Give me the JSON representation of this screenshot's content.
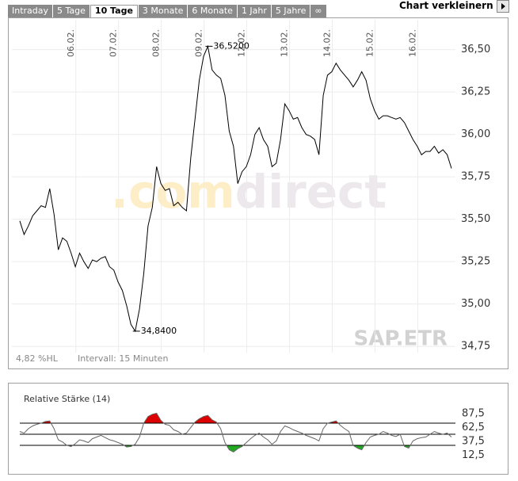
{
  "tabs": [
    {
      "label": "Intraday",
      "active": false
    },
    {
      "label": "5 Tage",
      "active": false
    },
    {
      "label": "10 Tage",
      "active": true
    },
    {
      "label": "3 Monate",
      "active": false
    },
    {
      "label": "6 Monate",
      "active": false
    },
    {
      "label": "1 Jahr",
      "active": false
    },
    {
      "label": "5 Jahre",
      "active": false
    },
    {
      "label": "∞",
      "active": false
    }
  ],
  "header_action": "Chart verkleinern",
  "chart_data": [
    {
      "type": "line",
      "categories": [
        null,
        null,
        null,
        null,
        null,
        null,
        null,
        null,
        null,
        null,
        null,
        null,
        "06.02.",
        null,
        null,
        null,
        null,
        null,
        null,
        null,
        null,
        null,
        "07.02.",
        null,
        null,
        null,
        null,
        null,
        null,
        null,
        null,
        null,
        "08.02.",
        null,
        null,
        null,
        null,
        null,
        null,
        null,
        null,
        null,
        "09.02.",
        null,
        null,
        null,
        null,
        null,
        null,
        null,
        null,
        null,
        "12.02.",
        null,
        null,
        null,
        null,
        null,
        null,
        null,
        null,
        null,
        "13.02.",
        null,
        null,
        null,
        null,
        null,
        null,
        null,
        null,
        null,
        "14.02.",
        null,
        null,
        null,
        null,
        null,
        null,
        null,
        null,
        null,
        "15.02.",
        null,
        null,
        null,
        null,
        null,
        null,
        null,
        null,
        null,
        "16.02.",
        null,
        null,
        null,
        null,
        null,
        null,
        null,
        null,
        null
      ],
      "values": [
        35.49,
        35.41,
        35.46,
        35.52,
        35.55,
        35.58,
        35.57,
        35.68,
        35.53,
        35.32,
        35.39,
        35.37,
        35.3,
        35.22,
        35.3,
        35.25,
        35.21,
        35.26,
        35.25,
        35.27,
        35.28,
        35.22,
        35.2,
        35.13,
        35.08,
        34.99,
        34.88,
        34.84,
        34.97,
        35.18,
        35.46,
        35.57,
        35.81,
        35.71,
        35.67,
        35.68,
        35.58,
        35.6,
        35.57,
        35.55,
        35.86,
        36.09,
        36.32,
        36.46,
        36.52,
        36.38,
        36.35,
        36.33,
        36.23,
        36.02,
        35.93,
        35.71,
        35.78,
        35.81,
        35.88,
        36.0,
        36.04,
        35.97,
        35.93,
        35.81,
        35.83,
        35.97,
        36.18,
        36.14,
        36.09,
        36.1,
        36.04,
        36.0,
        35.99,
        35.97,
        35.88,
        36.23,
        36.35,
        36.37,
        36.42,
        36.38,
        36.35,
        36.32,
        36.28,
        36.32,
        36.37,
        36.32,
        36.21,
        36.14,
        36.09,
        36.11,
        36.11,
        36.1,
        36.09,
        36.1,
        36.07,
        36.02,
        35.97,
        35.93,
        35.88,
        35.9,
        35.9,
        35.93,
        35.89,
        35.91,
        35.88,
        35.8
      ],
      "color": "#000000",
      "ylim": [
        34.62,
        36.69
      ],
      "yticks": [
        {
          "value": 34.75,
          "label": "34,75"
        },
        {
          "value": 35.0,
          "label": "35,00"
        },
        {
          "value": 35.25,
          "label": "35,25"
        },
        {
          "value": 35.5,
          "label": "35,50"
        },
        {
          "value": 35.75,
          "label": "35,75"
        },
        {
          "value": 36.0,
          "label": "36,00"
        },
        {
          "value": 36.25,
          "label": "36,25"
        },
        {
          "value": 36.5,
          "label": "36,50"
        }
      ],
      "grid": true,
      "annotations": [
        {
          "value": 36.52,
          "label": "36,5200"
        },
        {
          "value": 34.84,
          "label": "34,8400"
        }
      ],
      "range_note": "4,82 %HL",
      "interval_note": "Intervall: 15 Minuten",
      "watermark": [
        ".com",
        "direct"
      ],
      "symbol": "SAP.ETR"
    },
    {
      "type": "line",
      "title": "Relative Stärke (14)",
      "values": [
        55,
        52,
        60,
        65,
        68,
        70,
        73,
        74,
        60,
        40,
        36,
        30,
        28,
        33,
        40,
        38,
        35,
        42,
        45,
        48,
        44,
        40,
        38,
        35,
        32,
        27,
        28,
        32,
        45,
        70,
        82,
        86,
        88,
        75,
        68,
        66,
        58,
        55,
        50,
        52,
        62,
        72,
        78,
        82,
        84,
        76,
        72,
        60,
        35,
        22,
        18,
        24,
        28,
        35,
        42,
        48,
        52,
        45,
        40,
        32,
        38,
        55,
        65,
        62,
        58,
        55,
        52,
        48,
        45,
        42,
        38,
        60,
        70,
        72,
        74,
        66,
        60,
        55,
        30,
        25,
        22,
        35,
        45,
        48,
        50,
        55,
        52,
        48,
        46,
        50,
        28,
        25,
        38,
        42,
        44,
        45,
        50,
        55,
        52,
        50,
        52,
        45
      ],
      "color": "#666666",
      "ylim": [
        0,
        100
      ],
      "yticks": [
        {
          "value": 12.5,
          "label": "12,5"
        },
        {
          "value": 37.5,
          "label": "37,5"
        },
        {
          "value": 62.5,
          "label": "62,5"
        },
        {
          "value": 87.5,
          "label": "87,5"
        }
      ],
      "reference_lines": [
        70,
        50,
        30
      ],
      "overbought_color": "#dd0000",
      "oversold_color": "#22aa22"
    }
  ]
}
